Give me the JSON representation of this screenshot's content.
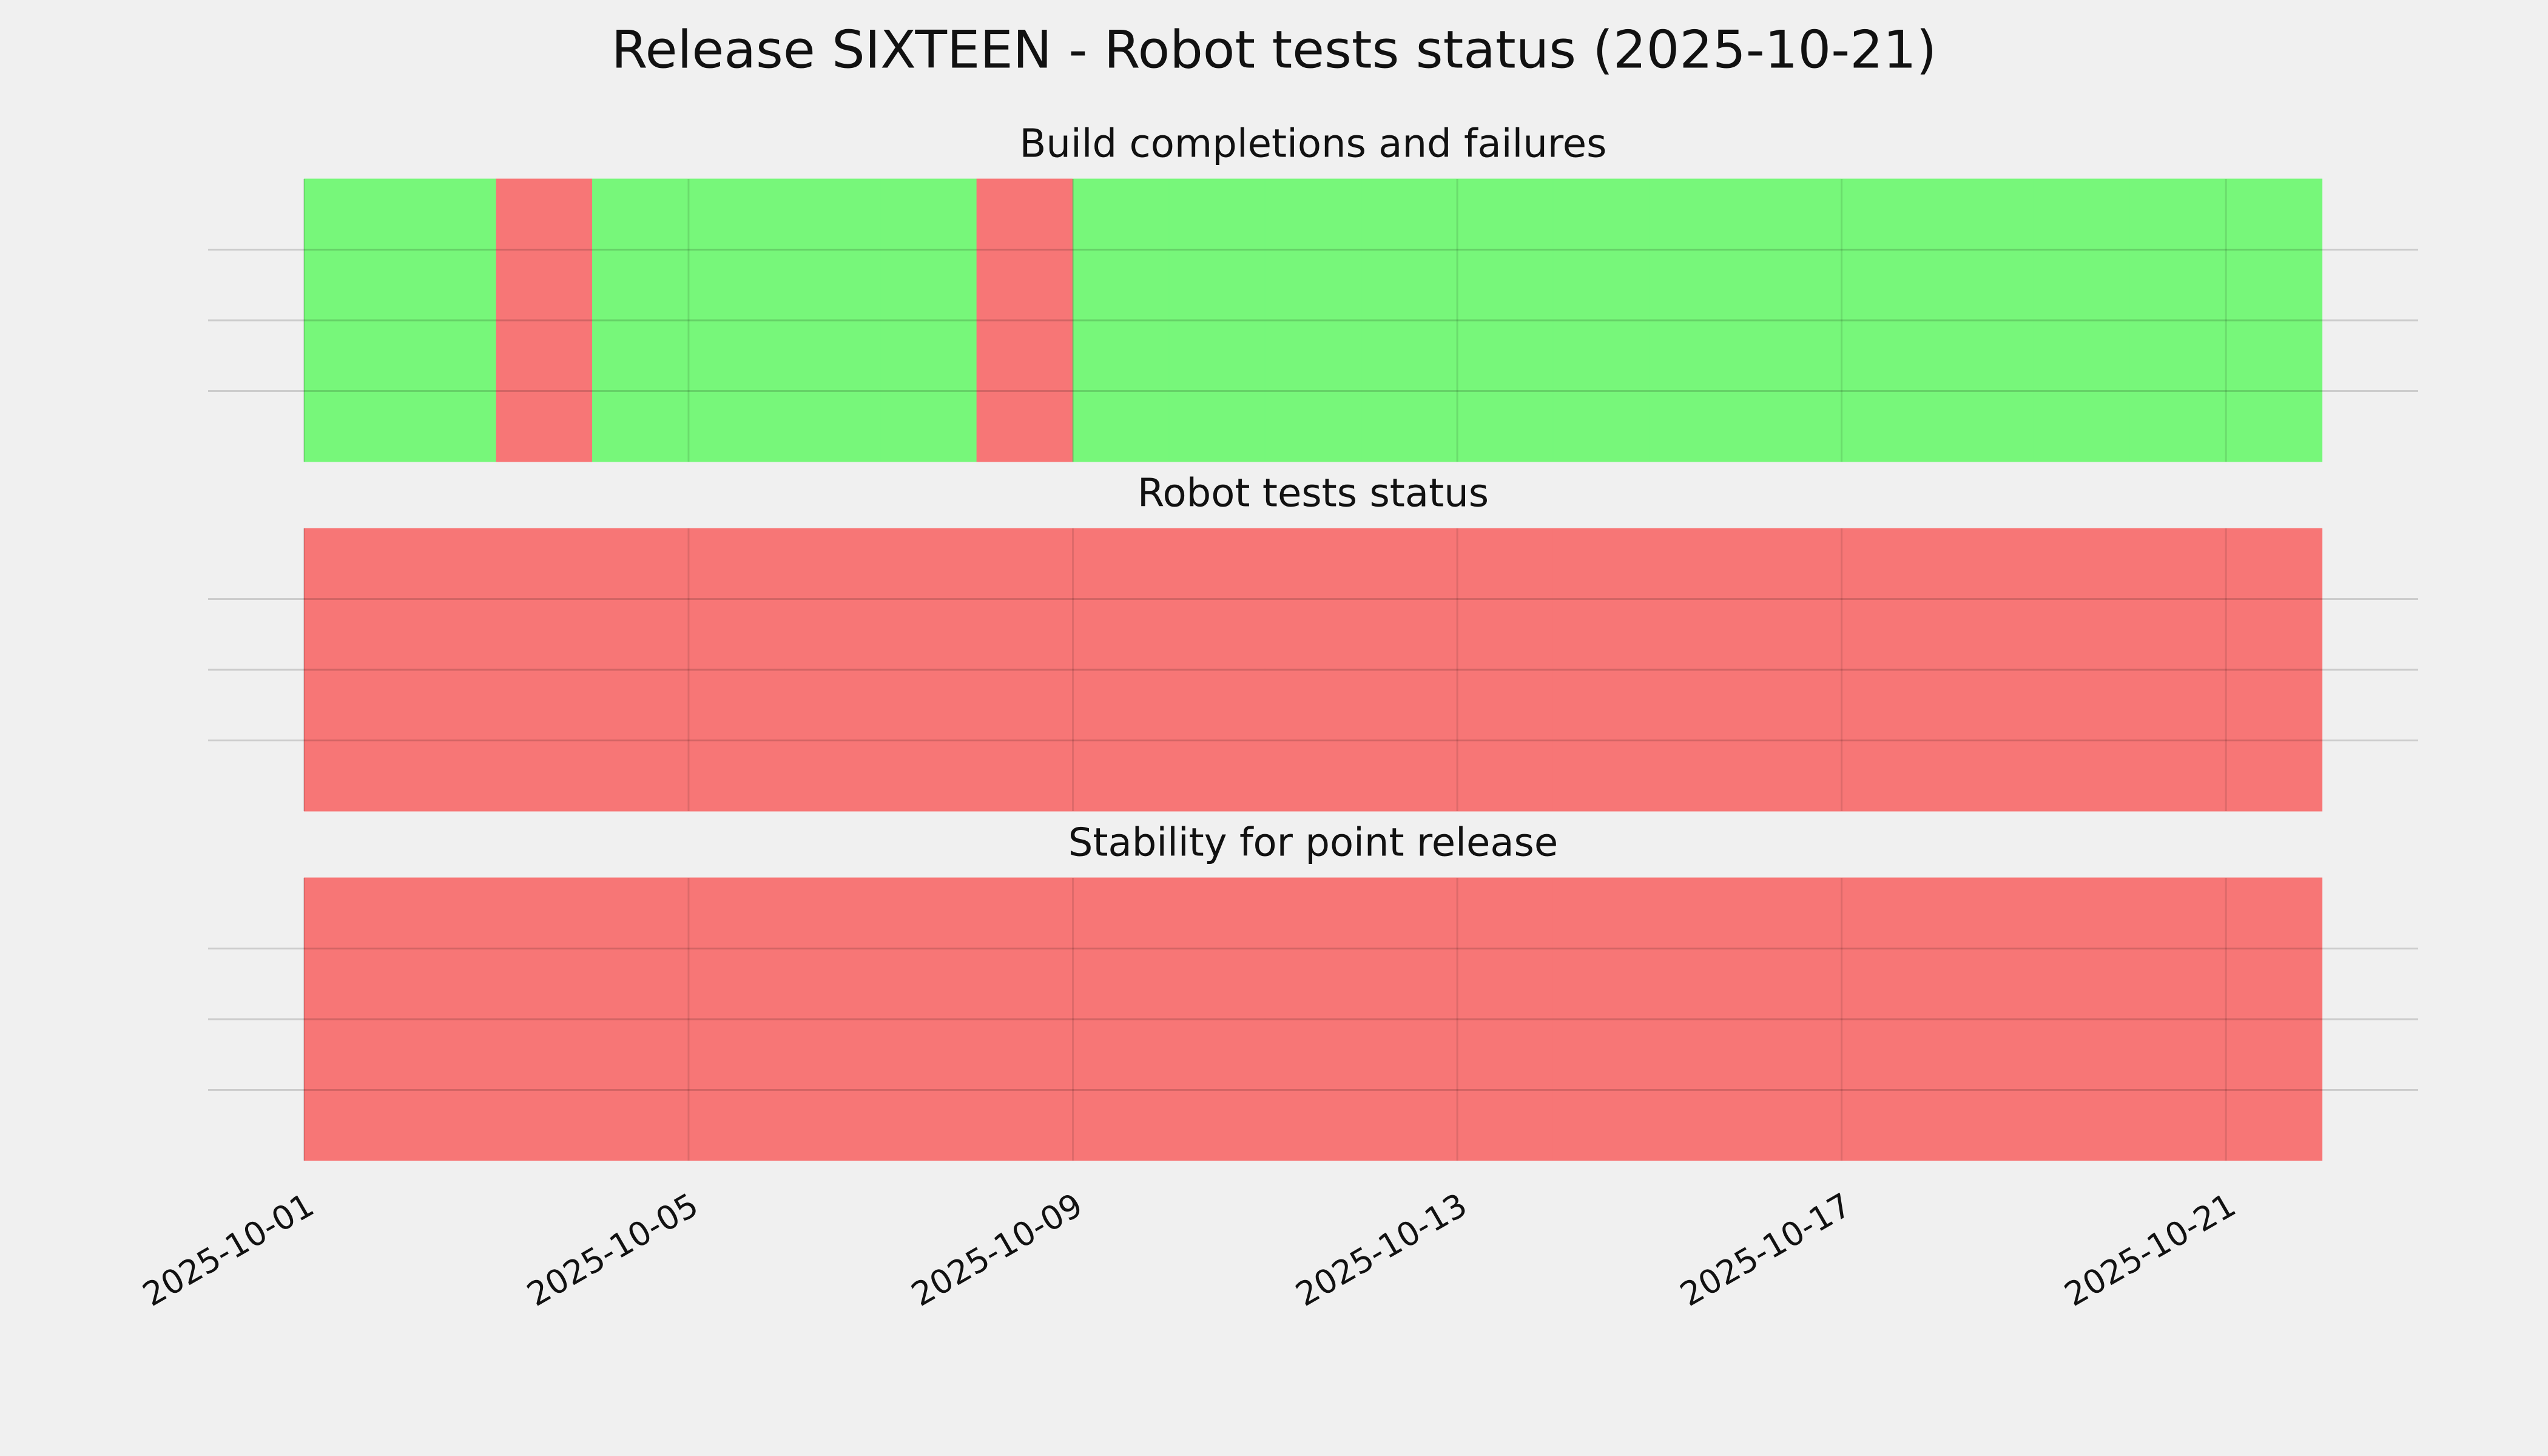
{
  "title": "Release SIXTEEN - Robot tests status (2025-10-21)",
  "chart_data": [
    {
      "type": "span",
      "title": "Build completions and failures",
      "x": [
        "2025-10-01",
        "2025-10-02",
        "2025-10-03",
        "2025-10-04",
        "2025-10-05",
        "2025-10-06",
        "2025-10-07",
        "2025-10-08",
        "2025-10-09",
        "2025-10-10",
        "2025-10-11",
        "2025-10-12",
        "2025-10-13",
        "2025-10-14",
        "2025-10-15",
        "2025-10-16",
        "2025-10-17",
        "2025-10-18",
        "2025-10-19",
        "2025-10-20",
        "2025-10-21"
      ],
      "colors": [
        "#77f77a",
        "#77f77a",
        "#f77676",
        "#77f77a",
        "#77f77a",
        "#77f77a",
        "#77f77a",
        "#f77676",
        "#77f77a",
        "#77f77a",
        "#77f77a",
        "#77f77a",
        "#77f77a",
        "#77f77a",
        "#77f77a",
        "#77f77a",
        "#77f77a",
        "#77f77a",
        "#77f77a",
        "#77f77a",
        "#77f77a"
      ],
      "xlim": [
        "2025-09-30",
        "2025-10-23"
      ],
      "xticks": [
        "2025-10-01",
        "2025-10-05",
        "2025-10-09",
        "2025-10-13",
        "2025-10-17",
        "2025-10-21"
      ],
      "ylim": [
        0,
        1
      ],
      "yticks": [
        0.25,
        0.5,
        0.75
      ],
      "grid": true
    },
    {
      "type": "span",
      "title": "Robot tests status",
      "x": [
        "2025-10-01",
        "2025-10-02",
        "2025-10-03",
        "2025-10-04",
        "2025-10-05",
        "2025-10-06",
        "2025-10-07",
        "2025-10-08",
        "2025-10-09",
        "2025-10-10",
        "2025-10-11",
        "2025-10-12",
        "2025-10-13",
        "2025-10-14",
        "2025-10-15",
        "2025-10-16",
        "2025-10-17",
        "2025-10-18",
        "2025-10-19",
        "2025-10-20",
        "2025-10-21"
      ],
      "colors": [
        "#f77676",
        "#f77676",
        "#f77676",
        "#f77676",
        "#f77676",
        "#f77676",
        "#f77676",
        "#f77676",
        "#f77676",
        "#f77676",
        "#f77676",
        "#f77676",
        "#f77676",
        "#f77676",
        "#f77676",
        "#f77676",
        "#f77676",
        "#f77676",
        "#f77676",
        "#f77676",
        "#f77676"
      ],
      "xlim": [
        "2025-09-30",
        "2025-10-23"
      ],
      "xticks": [
        "2025-10-01",
        "2025-10-05",
        "2025-10-09",
        "2025-10-13",
        "2025-10-17",
        "2025-10-21"
      ],
      "ylim": [
        0,
        1
      ],
      "yticks": [
        0.25,
        0.5,
        0.75
      ],
      "grid": true
    },
    {
      "type": "span",
      "title": "Stability for point release",
      "x": [
        "2025-10-01",
        "2025-10-02",
        "2025-10-03",
        "2025-10-04",
        "2025-10-05",
        "2025-10-06",
        "2025-10-07",
        "2025-10-08",
        "2025-10-09",
        "2025-10-10",
        "2025-10-11",
        "2025-10-12",
        "2025-10-13",
        "2025-10-14",
        "2025-10-15",
        "2025-10-16",
        "2025-10-17",
        "2025-10-18",
        "2025-10-19",
        "2025-10-20",
        "2025-10-21"
      ],
      "colors": [
        "#f77676",
        "#f77676",
        "#f77676",
        "#f77676",
        "#f77676",
        "#f77676",
        "#f77676",
        "#f77676",
        "#f77676",
        "#f77676",
        "#f77676",
        "#f77676",
        "#f77676",
        "#f77676",
        "#f77676",
        "#f77676",
        "#f77676",
        "#f77676",
        "#f77676",
        "#f77676",
        "#f77676"
      ],
      "xlim": [
        "2025-09-30",
        "2025-10-23"
      ],
      "xticks": [
        "2025-10-01",
        "2025-10-05",
        "2025-10-09",
        "2025-10-13",
        "2025-10-17",
        "2025-10-21"
      ],
      "ylim": [
        0,
        1
      ],
      "yticks": [
        0.25,
        0.5,
        0.75
      ],
      "grid": true,
      "show_xtick_labels": true
    }
  ]
}
